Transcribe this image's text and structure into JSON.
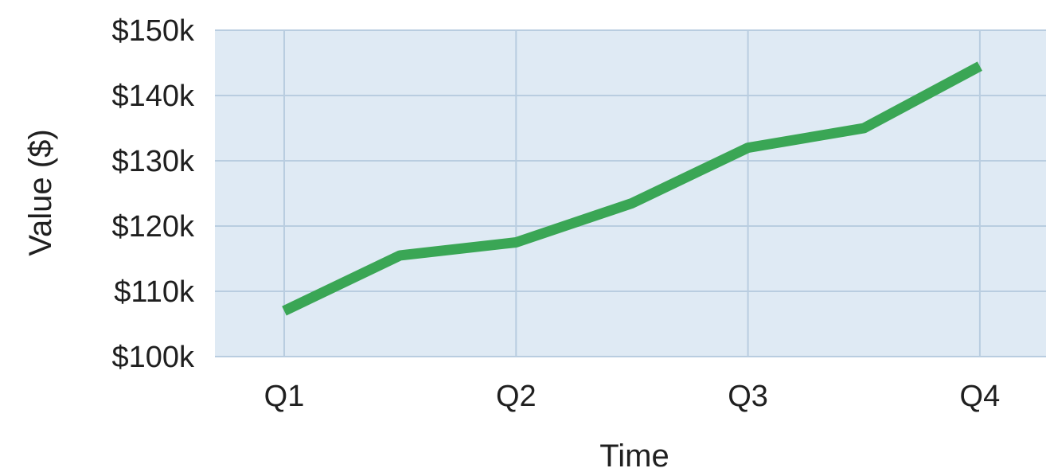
{
  "chart_data": {
    "type": "line",
    "title": "",
    "xlabel": "Time",
    "ylabel": "Value ($)",
    "categories": [
      "Q1",
      "Q2",
      "Q3",
      "Q4"
    ],
    "y_ticks": [
      100000,
      110000,
      120000,
      130000,
      140000,
      150000
    ],
    "y_tick_labels": [
      "$100k",
      "$110k",
      "$120k",
      "$130k",
      "$140k",
      "$150k"
    ],
    "ylim": [
      100000,
      150000
    ],
    "grid": true,
    "series": [
      {
        "color": "#3aa655",
        "x": [
          1,
          1.5,
          2,
          2.5,
          3,
          3.5,
          4
        ],
        "values": [
          107000,
          115500,
          117500,
          123500,
          132000,
          135000,
          144500
        ]
      }
    ],
    "colors": {
      "plot_background": "#dfeaf4",
      "grid": "#b9cde0",
      "line": "#3aa655"
    }
  }
}
